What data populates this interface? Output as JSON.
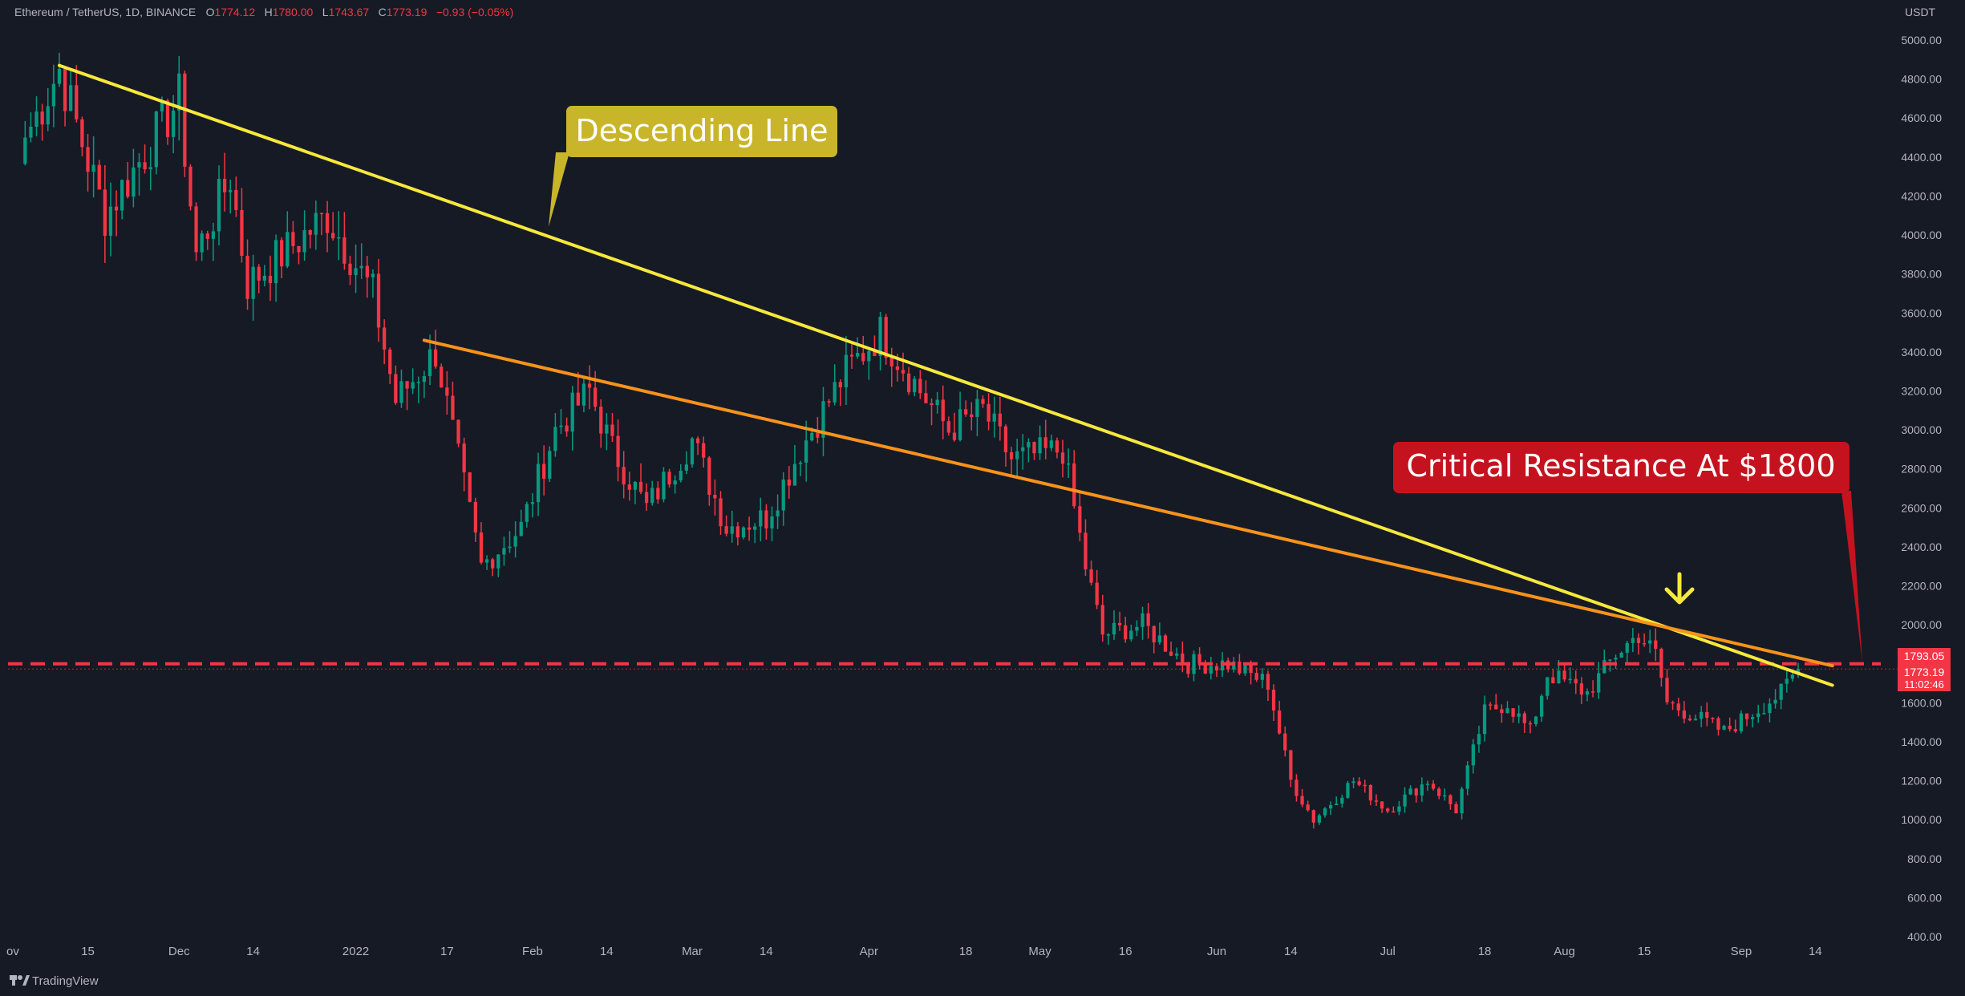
{
  "header": {
    "symbol": "Ethereum / TetherUS, 1D, BINANCE",
    "open_label": "O",
    "open": "1774.12",
    "high_label": "H",
    "high": "1780.00",
    "low_label": "L",
    "low": "1743.67",
    "close_label": "C",
    "close": "1773.19",
    "change": "−0.93 (−0.05%)"
  },
  "axis": {
    "currency": "USDT",
    "y_ticks": [
      "5000.00",
      "4800.00",
      "4600.00",
      "4400.00",
      "4200.00",
      "4000.00",
      "3800.00",
      "3600.00",
      "3400.00",
      "3200.00",
      "3000.00",
      "2800.00",
      "2600.00",
      "2400.00",
      "2200.00",
      "2000.00",
      "1800.00",
      "1600.00",
      "1400.00",
      "1200.00",
      "1000.00",
      "800.00",
      "600.00",
      "400.00"
    ],
    "x_ticks": [
      "ov",
      "15",
      "Dec",
      "14",
      "2022",
      "17",
      "Feb",
      "14",
      "Mar",
      "14",
      "Apr",
      "18",
      "May",
      "16",
      "Jun",
      "14",
      "Jul",
      "18",
      "Aug",
      "15",
      "Sep",
      "14"
    ]
  },
  "price_labels": {
    "level_value": "1793.05",
    "last_price": "1773.19",
    "countdown": "11:02:46"
  },
  "annotations": {
    "descending_line_label": "Descending Line",
    "resistance_label": "Critical Resistance At $1800"
  },
  "branding": {
    "name": "TradingView"
  },
  "colors": {
    "background": "#161a25",
    "up_candle": "#089981",
    "down_candle": "#f23645",
    "descending_line": "#f7e83c",
    "second_trendline": "#f7931a",
    "resistance_level": "#f23645",
    "callout_yellow": "#c9b52a",
    "callout_red": "#c4131f",
    "arrow": "#f7e83c"
  },
  "chart_data": {
    "type": "candlestick",
    "symbol": "ETH/USDT",
    "interval": "1D",
    "ylim": [
      400,
      5000
    ],
    "x_range": [
      "2021-11-01",
      "2022-09-20"
    ],
    "grid": false,
    "key_points": [
      {
        "x": "2021-11-04",
        "y": 4500
      },
      {
        "x": "2021-11-10",
        "y": 4850
      },
      {
        "x": "2021-11-18",
        "y": 4100
      },
      {
        "x": "2021-12-01",
        "y": 4700
      },
      {
        "x": "2021-12-04",
        "y": 3900
      },
      {
        "x": "2021-12-10",
        "y": 4300
      },
      {
        "x": "2021-12-13",
        "y": 3750
      },
      {
        "x": "2021-12-27",
        "y": 4100
      },
      {
        "x": "2022-01-04",
        "y": 3700
      },
      {
        "x": "2022-01-08",
        "y": 3150
      },
      {
        "x": "2022-01-15",
        "y": 3400
      },
      {
        "x": "2022-01-23",
        "y": 2300
      },
      {
        "x": "2022-01-30",
        "y": 2500
      },
      {
        "x": "2022-02-05",
        "y": 3000
      },
      {
        "x": "2022-02-11",
        "y": 3200
      },
      {
        "x": "2022-02-15",
        "y": 2900
      },
      {
        "x": "2022-02-21",
        "y": 2600
      },
      {
        "x": "2022-03-01",
        "y": 2950
      },
      {
        "x": "2022-03-07",
        "y": 2500
      },
      {
        "x": "2022-03-14",
        "y": 2550
      },
      {
        "x": "2022-03-20",
        "y": 2900
      },
      {
        "x": "2022-03-28",
        "y": 3300
      },
      {
        "x": "2022-04-03",
        "y": 3500
      },
      {
        "x": "2022-04-10",
        "y": 3200
      },
      {
        "x": "2022-04-15",
        "y": 3000
      },
      {
        "x": "2022-04-21",
        "y": 3100
      },
      {
        "x": "2022-04-26",
        "y": 2850
      },
      {
        "x": "2022-05-05",
        "y": 2900
      },
      {
        "x": "2022-05-09",
        "y": 2300
      },
      {
        "x": "2022-05-12",
        "y": 1950
      },
      {
        "x": "2022-05-19",
        "y": 2000
      },
      {
        "x": "2022-05-27",
        "y": 1800
      },
      {
        "x": "2022-06-03",
        "y": 1800
      },
      {
        "x": "2022-06-10",
        "y": 1700
      },
      {
        "x": "2022-06-14",
        "y": 1200
      },
      {
        "x": "2022-06-18",
        "y": 1000
      },
      {
        "x": "2022-06-25",
        "y": 1200
      },
      {
        "x": "2022-07-01",
        "y": 1050
      },
      {
        "x": "2022-07-08",
        "y": 1200
      },
      {
        "x": "2022-07-13",
        "y": 1050
      },
      {
        "x": "2022-07-18",
        "y": 1550
      },
      {
        "x": "2022-07-22",
        "y": 1600
      },
      {
        "x": "2022-07-26",
        "y": 1450
      },
      {
        "x": "2022-07-29",
        "y": 1750
      },
      {
        "x": "2022-08-05",
        "y": 1650
      },
      {
        "x": "2022-08-10",
        "y": 1850
      },
      {
        "x": "2022-08-14",
        "y": 1950
      },
      {
        "x": "2022-08-17",
        "y": 1850
      },
      {
        "x": "2022-08-19",
        "y": 1600
      },
      {
        "x": "2022-08-26",
        "y": 1500
      },
      {
        "x": "2022-08-29",
        "y": 1450
      },
      {
        "x": "2022-09-03",
        "y": 1550
      },
      {
        "x": "2022-09-08",
        "y": 1650
      },
      {
        "x": "2022-09-11",
        "y": 1773
      }
    ],
    "last_close": 1773.19,
    "trendlines": [
      {
        "name": "Descending Line",
        "color": "#f7e83c",
        "from": {
          "x": "2021-11-10",
          "y": 4870
        },
        "to": {
          "x": "2022-09-17",
          "y": 1690
        }
      },
      {
        "color": "#f7931a",
        "from": {
          "x": "2022-01-13",
          "y": 3460
        },
        "to": {
          "x": "2022-09-17",
          "y": 1790
        }
      }
    ],
    "horizontal_levels": [
      {
        "y": 1800,
        "color": "#f23645",
        "style": "dashed"
      }
    ]
  }
}
